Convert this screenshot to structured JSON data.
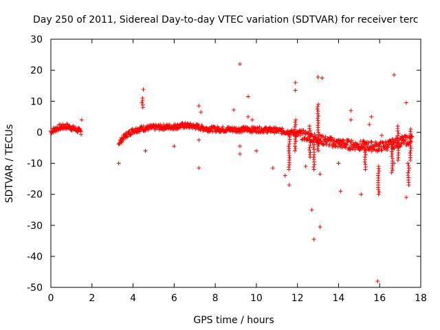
{
  "chart_data": {
    "type": "scatter",
    "title": "Day 250 of 2011, Sidereal Day-to-day VTEC variation (SDTVAR) for receiver terc",
    "xlabel": "GPS time / hours",
    "ylabel": "SDTVAR / TECUs",
    "xlim": [
      0,
      18
    ],
    "ylim": [
      -50,
      30
    ],
    "xticks": [
      0,
      2,
      4,
      6,
      8,
      10,
      12,
      14,
      16,
      18
    ],
    "yticks": [
      -50,
      -40,
      -30,
      -20,
      -10,
      0,
      10,
      20,
      30
    ],
    "marker": "+",
    "color": "#ff0000",
    "band_segments": [
      [
        [
          0.0,
          0.3
        ],
        [
          0.4,
          1.6
        ],
        [
          0.8,
          1.9
        ],
        [
          1.2,
          1.0
        ],
        [
          1.5,
          0.0
        ]
      ],
      [
        [
          3.3,
          -3.5
        ],
        [
          3.6,
          -1.2
        ],
        [
          4.0,
          0.6
        ],
        [
          4.5,
          1.3
        ],
        [
          5.2,
          1.6
        ],
        [
          6.0,
          1.8
        ],
        [
          6.5,
          2.2
        ],
        [
          7.0,
          1.9
        ],
        [
          7.5,
          1.2
        ],
        [
          8.0,
          1.0
        ],
        [
          9.0,
          0.9
        ],
        [
          10.0,
          0.9
        ],
        [
          10.8,
          0.7
        ],
        [
          11.5,
          0.2
        ],
        [
          12.0,
          -0.5
        ],
        [
          12.5,
          -1.3
        ],
        [
          13.0,
          -2.2
        ],
        [
          13.5,
          -3.0
        ],
        [
          14.0,
          -3.6
        ],
        [
          14.5,
          -4.0
        ],
        [
          15.0,
          -4.3
        ],
        [
          15.5,
          -4.5
        ],
        [
          16.0,
          -4.6
        ],
        [
          16.5,
          -4.0
        ],
        [
          17.0,
          -3.0
        ],
        [
          17.6,
          -2.2
        ]
      ]
    ],
    "vertical_streaks": [
      {
        "x": 4.45,
        "y0": 8.0,
        "y1": 11.0
      },
      {
        "x": 11.6,
        "y0": -12.0,
        "y1": 0.0
      },
      {
        "x": 11.9,
        "y0": -6.0,
        "y1": 4.0
      },
      {
        "x": 12.6,
        "y0": -8.0,
        "y1": 2.0
      },
      {
        "x": 12.8,
        "y0": -12.0,
        "y1": -4.0
      },
      {
        "x": 13.0,
        "y0": -6.0,
        "y1": 9.0
      },
      {
        "x": 15.3,
        "y0": -12.0,
        "y1": -4.0
      },
      {
        "x": 15.95,
        "y0": -20.0,
        "y1": -11.0
      },
      {
        "x": 16.6,
        "y0": -13.0,
        "y1": -4.0
      },
      {
        "x": 16.9,
        "y0": -9.0,
        "y1": 2.0
      },
      {
        "x": 17.4,
        "y0": -17.0,
        "y1": -10.0
      },
      {
        "x": 17.5,
        "y0": -9.0,
        "y1": 1.0
      }
    ],
    "outliers": [
      [
        1.5,
        4.0
      ],
      [
        3.3,
        -10.0
      ],
      [
        4.5,
        13.8
      ],
      [
        4.6,
        -6.0
      ],
      [
        6.0,
        -4.5
      ],
      [
        7.2,
        8.5
      ],
      [
        7.2,
        -2.5
      ],
      [
        7.2,
        -11.5
      ],
      [
        7.3,
        6.5
      ],
      [
        8.9,
        7.2
      ],
      [
        9.2,
        22.0
      ],
      [
        9.2,
        -7.0
      ],
      [
        9.2,
        -4.5
      ],
      [
        9.6,
        11.5
      ],
      [
        9.6,
        5.0
      ],
      [
        9.8,
        4.0
      ],
      [
        10.0,
        -6.0
      ],
      [
        10.8,
        -11.5
      ],
      [
        11.4,
        -14.0
      ],
      [
        11.6,
        -17.0
      ],
      [
        11.9,
        16.0
      ],
      [
        11.9,
        13.5
      ],
      [
        12.4,
        -11.0
      ],
      [
        12.7,
        -25.0
      ],
      [
        12.8,
        -34.5
      ],
      [
        13.0,
        17.8
      ],
      [
        13.2,
        17.5
      ],
      [
        13.1,
        -30.5
      ],
      [
        13.1,
        -13.5
      ],
      [
        14.0,
        -10.0
      ],
      [
        14.1,
        -19.0
      ],
      [
        14.6,
        7.0
      ],
      [
        14.6,
        4.0
      ],
      [
        15.1,
        -20.0
      ],
      [
        15.6,
        5.0
      ],
      [
        15.5,
        2.5
      ],
      [
        15.9,
        -48.0
      ],
      [
        16.1,
        -1.0
      ],
      [
        16.7,
        18.5
      ],
      [
        16.7,
        -10.0
      ],
      [
        17.3,
        9.5
      ],
      [
        17.3,
        -21.0
      ]
    ]
  }
}
